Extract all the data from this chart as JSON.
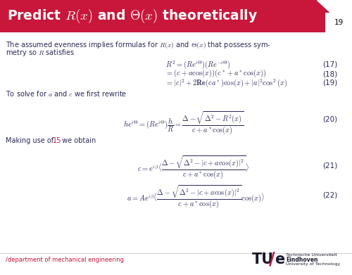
{
  "title_text": "Predict $R(x)$ and $\\Theta(x)$ theoretically",
  "title_bg_color": "#C8173A",
  "title_text_color": "#FFFFFF",
  "slide_bg_color": "#FFFFFF",
  "page_number": "19",
  "body_text_color": "#2a2a5a",
  "highlight_color": "#C8173A",
  "tu_dark_color": "#1a1a2e",
  "footer_text": "/department of mechanical engineering",
  "line1": "The assumed evenness implies formulas for $R(x)$ and $\\Theta(x)$ that possess sym-",
  "line2": "metry so $R$ satisfies",
  "eq17": "$R^2 = (Re^{i\\Theta})(Re^{-i\\Theta})$",
  "eq17_num": "(17)",
  "eq18": "$= (c + a\\cos(x))(c^* + a^*\\cos(x))$",
  "eq18_num": "(18)",
  "eq19": "$= |c|^2 + 2\\mathbf{Re}(ca^*)\\cos(x) + |a|^2\\cos^2(x)$",
  "eq19_num": "(19)",
  "text2": "To solve for $a$ and $c$ we first rewrite",
  "eq20": "$he^{i\\Theta} = (Re^{i\\Theta})\\dfrac{h}{R} = \\dfrac{\\Delta - \\sqrt{\\Delta^2 - R^2(x)}}{c + a^*\\cos(x)}$",
  "eq20_num": "(20)",
  "text3a": "Making use of ",
  "text3b": "15",
  "text3c": " we obtain",
  "eq21": "$c = e^{i\\beta}\\langle \\dfrac{\\Delta - \\sqrt{\\Delta^2 - |c + a\\cos(x)|^2}}{c + a^*\\cos(x)} \\rangle$",
  "eq21_num": "(21)",
  "eq22": "$a = Ae^{i\\beta}\\langle \\dfrac{\\Delta - \\sqrt{\\Delta^2 - |c + a\\cos(x)|^2}}{c + a^*\\cos(x)}\\cos(x) \\rangle$",
  "eq22_num": "(22)",
  "tu_text1": "Technische Universiteit",
  "tu_text2": "Eindhoven",
  "tu_text3": "University of Technology"
}
